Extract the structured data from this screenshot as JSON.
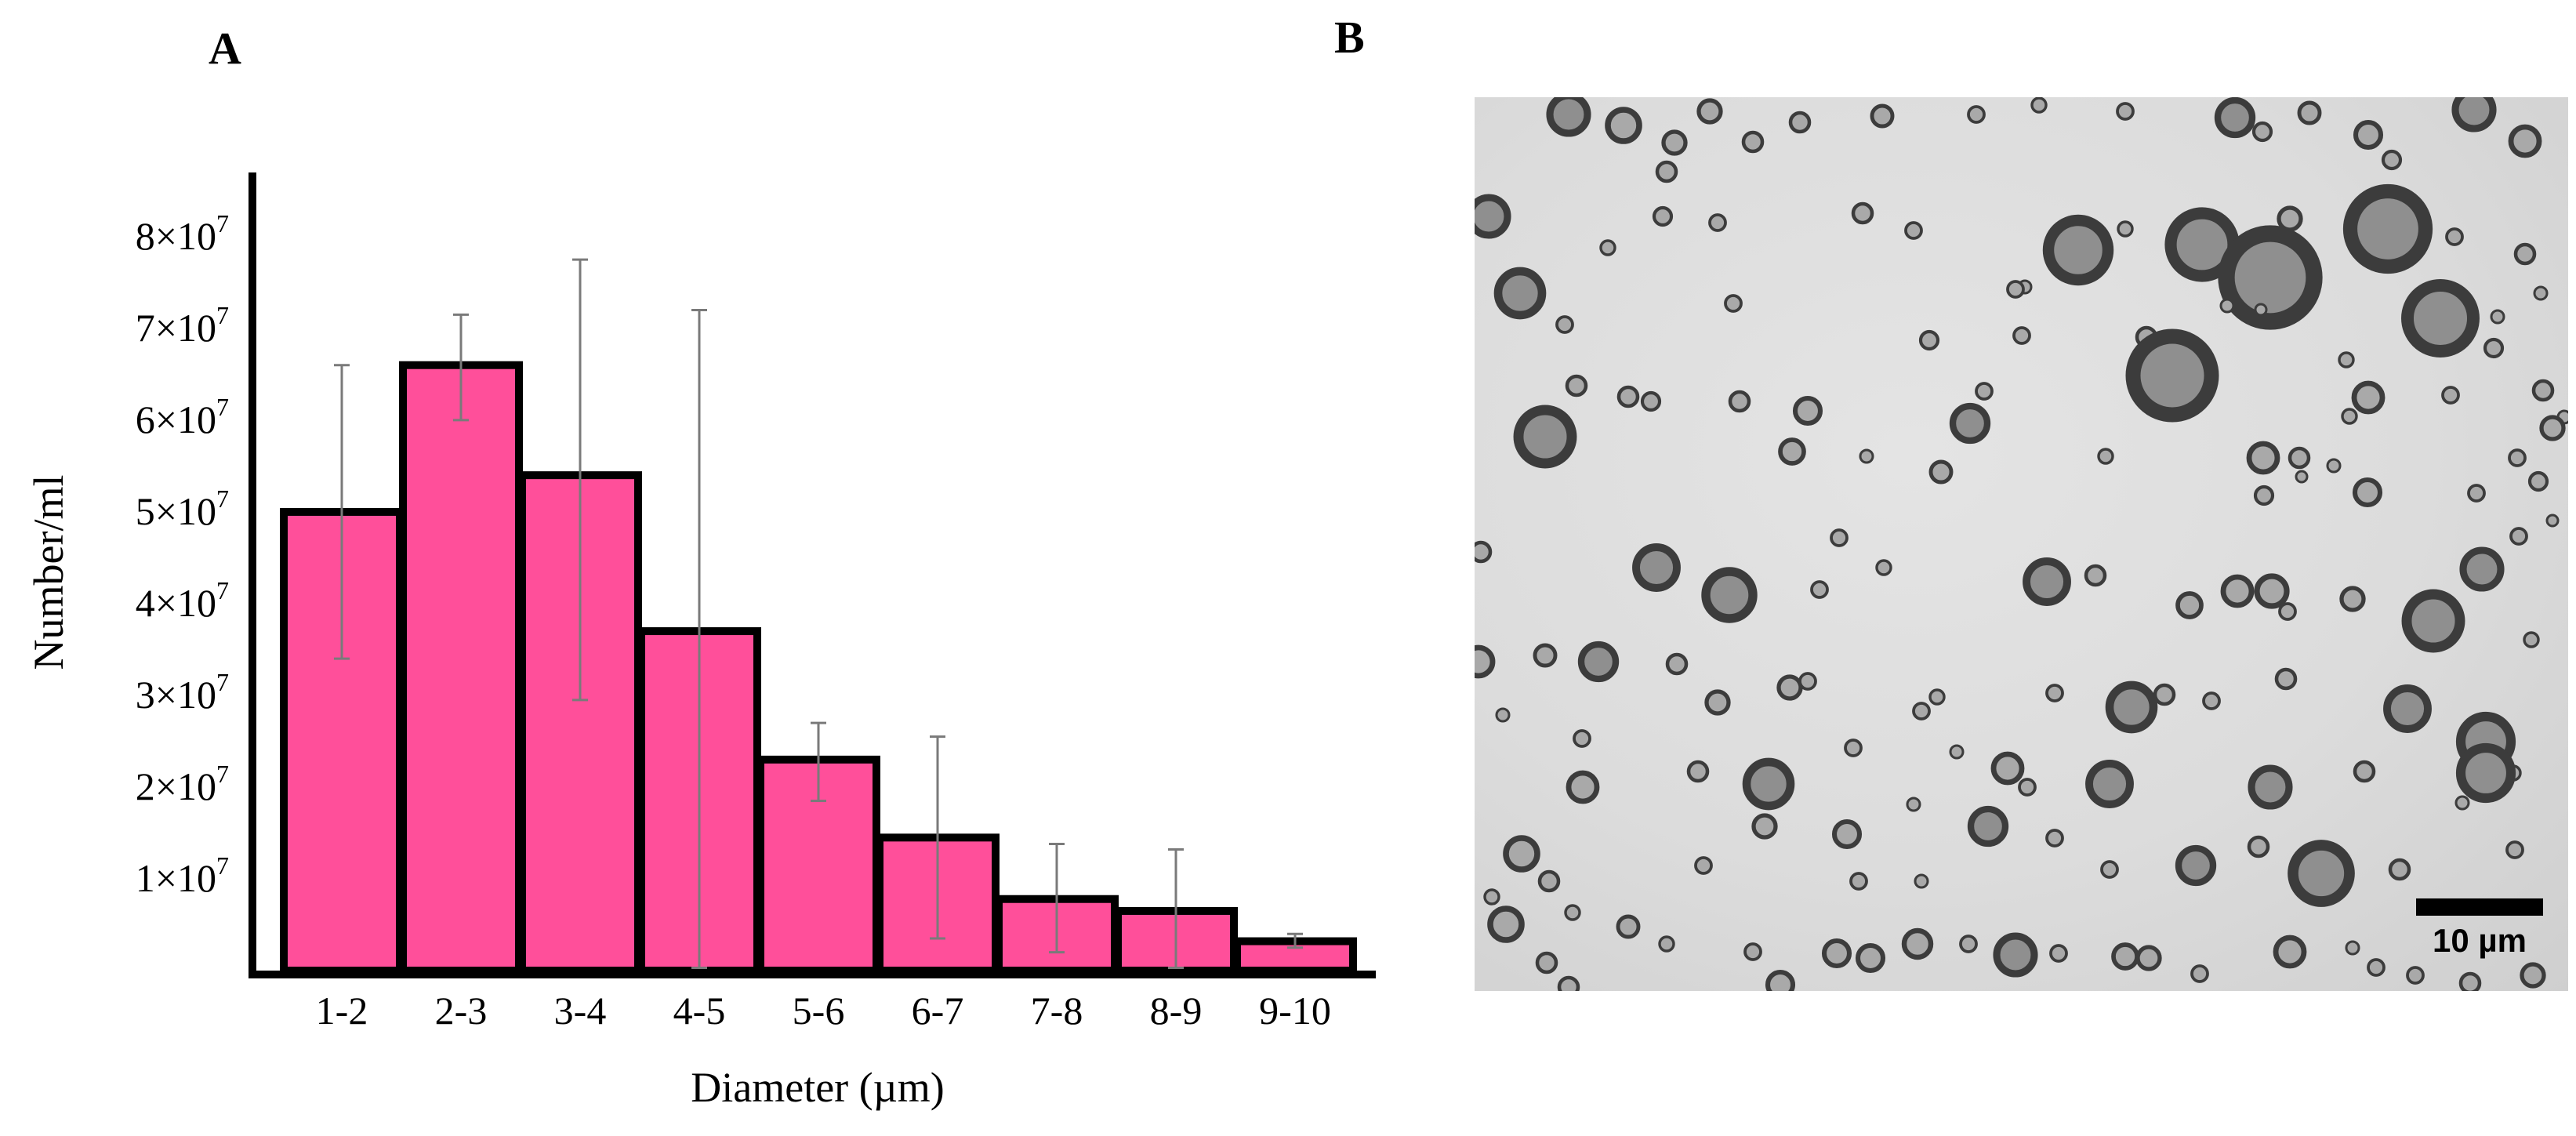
{
  "panels": {
    "a_label": "A",
    "b_label": "B"
  },
  "chart_data": {
    "type": "bar",
    "categories": [
      "1-2",
      "2-3",
      "3-4",
      "4-5",
      "5-6",
      "6-7",
      "7-8",
      "8-9",
      "9-10"
    ],
    "values": [
      50000000,
      66000000,
      54000000,
      37000000,
      23000000,
      14500000,
      7800000,
      6500000,
      3200000
    ],
    "error_low": [
      34000000,
      60000000,
      29500000,
      300000,
      18500000,
      3500000,
      2000000,
      300000,
      2500000
    ],
    "error_high": [
      66000000,
      71500000,
      77500000,
      72000000,
      27000000,
      25500000,
      13800000,
      13200000,
      4000000
    ],
    "xlabel": "Diameter (µm)",
    "ylabel": "Number/ml",
    "ylim": [
      0,
      87000000
    ],
    "y_ticks": [
      {
        "value": 10000000,
        "mantissa": "1",
        "exp": "7"
      },
      {
        "value": 20000000,
        "mantissa": "2",
        "exp": "7"
      },
      {
        "value": 30000000,
        "mantissa": "3",
        "exp": "7"
      },
      {
        "value": 40000000,
        "mantissa": "4",
        "exp": "7"
      },
      {
        "value": 50000000,
        "mantissa": "5",
        "exp": "7"
      },
      {
        "value": 60000000,
        "mantissa": "6",
        "exp": "7"
      },
      {
        "value": 70000000,
        "mantissa": "7",
        "exp": "7"
      },
      {
        "value": 80000000,
        "mantissa": "8",
        "exp": "7"
      }
    ],
    "bar_color": "#ff4f9a",
    "edge_color": "#000000",
    "error_color": "#7a7a7a",
    "grid": false
  },
  "micrograph": {
    "scale_bar_label": "10 µm"
  }
}
